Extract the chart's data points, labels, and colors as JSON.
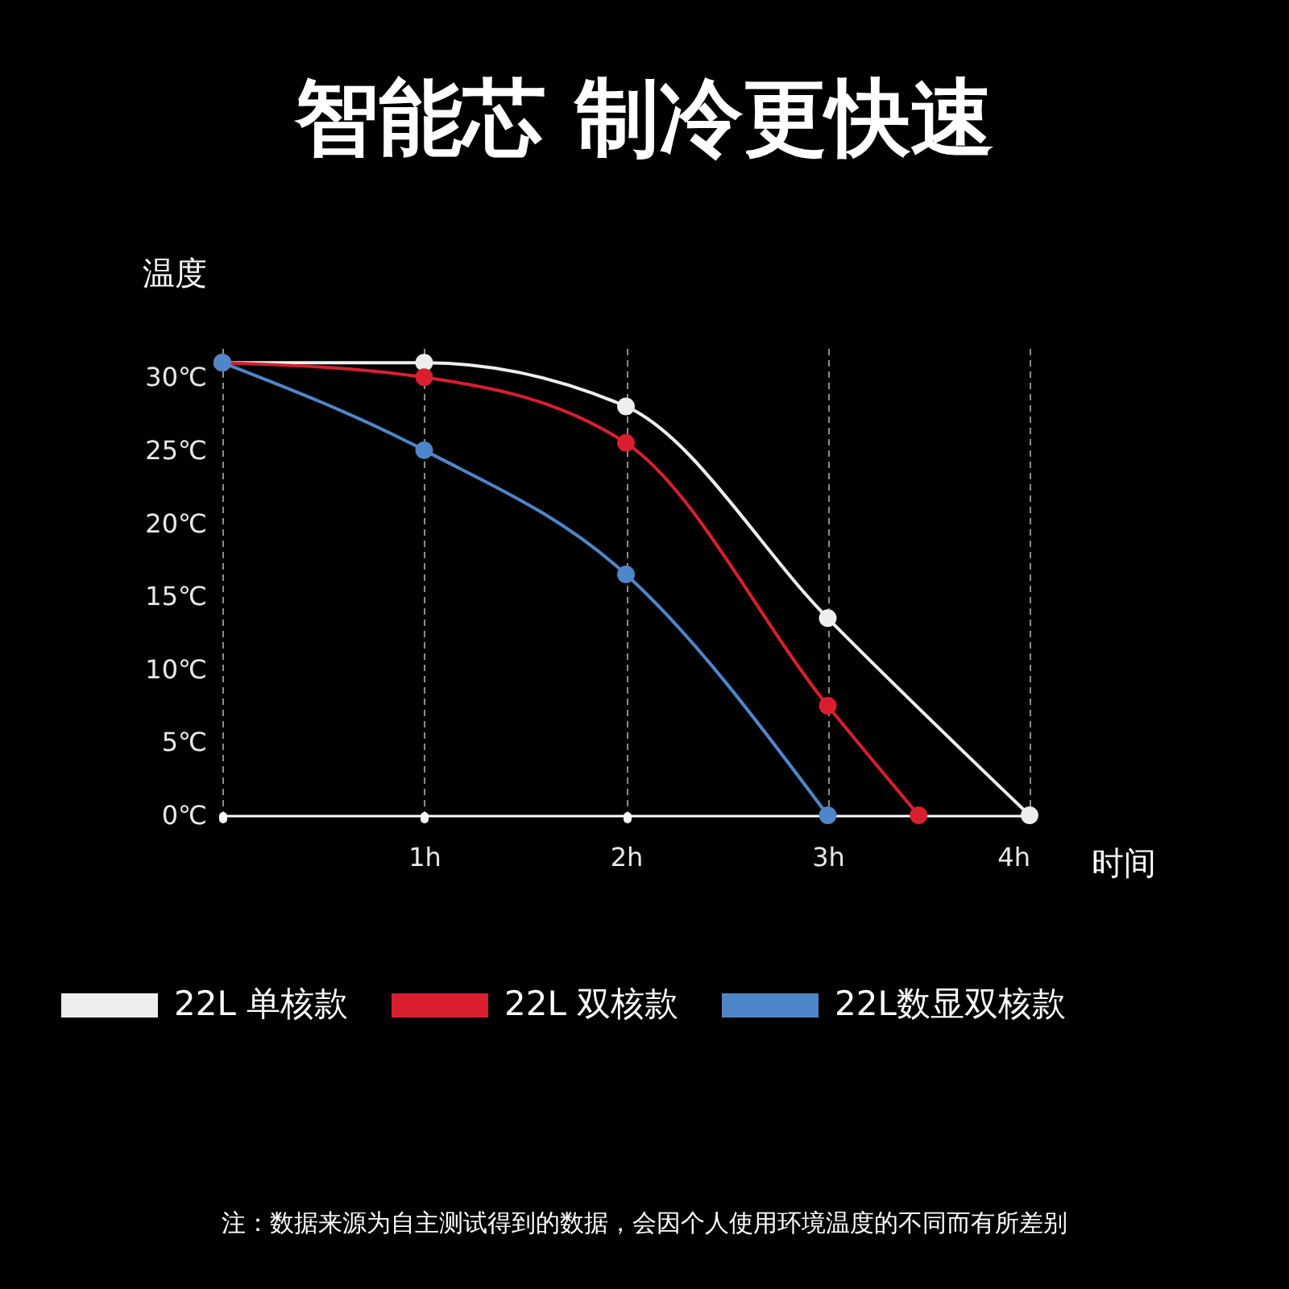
{
  "chart_data": {
    "type": "line",
    "title": "智能芯 制冷更快速",
    "ylabel": "温度",
    "xlabel": "时间",
    "xlim": [
      0,
      4
    ],
    "xticks": [
      {
        "value": 0,
        "label": null
      },
      {
        "value": 1,
        "label": "1h"
      },
      {
        "value": 2,
        "label": "2h"
      },
      {
        "value": 3,
        "label": "3h"
      },
      {
        "value": 4,
        "label": "4h"
      }
    ],
    "ylim": [
      0,
      32
    ],
    "yticks": [
      {
        "value": 0,
        "label": "0℃"
      },
      {
        "value": 5,
        "label": "5℃"
      },
      {
        "value": 10,
        "label": "10℃"
      },
      {
        "value": 15,
        "label": "15℃"
      },
      {
        "value": 20,
        "label": "20℃"
      },
      {
        "value": 25,
        "label": "25℃"
      },
      {
        "value": 30,
        "label": "30℃"
      }
    ],
    "series": [
      {
        "name": "22L 单核款",
        "color": "#eeeeee",
        "x": [
          0,
          1,
          2,
          3,
          4
        ],
        "values": [
          31,
          31,
          28,
          13.5,
          0
        ]
      },
      {
        "name": "22L 双核款",
        "color": "#d91f2f",
        "x": [
          0,
          1,
          2,
          3,
          3.45
        ],
        "values": [
          31,
          30,
          25.5,
          7.5,
          0
        ]
      },
      {
        "name": "22L数显双核款",
        "color": "#4f86c9",
        "x": [
          0,
          1,
          2,
          3
        ],
        "values": [
          31,
          25,
          16.5,
          0
        ]
      }
    ],
    "grid": "x",
    "legend": "bottom",
    "marker": "circle",
    "line_style": "solid",
    "annotations": [
      "注：数据来源为自主测试得到的数据，会因个人使用环境温度的不同而有所差别"
    ]
  }
}
